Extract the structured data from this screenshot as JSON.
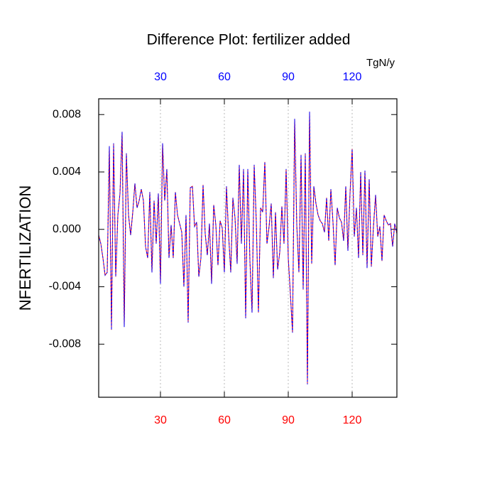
{
  "chart_data": {
    "type": "line",
    "title": "Difference Plot: fertilizer added",
    "ylabel": "NFERTILIZATION",
    "x2label": "TgN/y",
    "x": [
      1,
      2,
      3,
      4,
      5,
      6,
      7,
      8,
      9,
      10,
      11,
      12,
      13,
      14,
      15,
      16,
      17,
      18,
      19,
      20,
      21,
      22,
      23,
      24,
      25,
      26,
      27,
      28,
      29,
      30,
      31,
      32,
      33,
      34,
      35,
      36,
      37,
      38,
      39,
      40,
      41,
      42,
      43,
      44,
      45,
      46,
      47,
      48,
      49,
      50,
      51,
      52,
      53,
      54,
      55,
      56,
      57,
      58,
      59,
      60,
      61,
      62,
      63,
      64,
      65,
      66,
      67,
      68,
      69,
      70,
      71,
      72,
      73,
      74,
      75,
      76,
      77,
      78,
      79,
      80,
      81,
      82,
      83,
      84,
      85,
      86,
      87,
      88,
      89,
      90,
      91,
      92,
      93,
      94,
      95,
      96,
      97,
      98,
      99,
      100,
      101,
      102,
      103,
      104,
      105,
      106,
      107,
      108,
      109,
      110,
      111,
      112,
      113,
      114,
      115,
      116,
      117,
      118,
      119,
      120,
      121,
      122,
      123,
      124,
      125,
      126,
      127,
      128,
      129,
      130,
      131,
      132,
      133,
      134,
      135,
      136,
      137,
      138,
      139,
      140,
      141
    ],
    "series": [
      {
        "color": "#ff0000",
        "overlay_color": "#0000ff",
        "values": [
          -0.0004,
          -0.001,
          -0.002,
          -0.0032,
          -0.003,
          0.0058,
          -0.007,
          0.006,
          -0.0033,
          0.001,
          0.0025,
          0.0068,
          -0.0068,
          0.0053,
          0.001,
          -0.0004,
          0.0012,
          0.0032,
          0.0015,
          0.002,
          0.0028,
          0.002,
          -0.0012,
          -0.002,
          0.0026,
          -0.003,
          0.002,
          -0.001,
          0.0025,
          -0.0038,
          0.006,
          0.002,
          0.0042,
          -0.002,
          0.0003,
          -0.002,
          0.0026,
          0.001,
          0.0004,
          -0.0002,
          -0.004,
          0.001,
          -0.0065,
          0.0029,
          0.003,
          0.0002,
          0.0005,
          -0.0033,
          -0.002,
          0.0031,
          -0.0003,
          -0.0018,
          0.0004,
          -0.0038,
          0.0017,
          0.0003,
          -0.0025,
          0.0006,
          0.0001,
          -0.003,
          0.003,
          -0.0004,
          -0.003,
          0.0022,
          0.0008,
          -0.0024,
          0.0045,
          -0.001,
          0.0042,
          -0.0062,
          0.0042,
          -0.0022,
          -0.0058,
          0.0045,
          0.0005,
          -0.0058,
          0.0015,
          0.0012,
          0.0047,
          -0.001,
          0.0002,
          0.0018,
          -0.0034,
          0.0012,
          -0.0028,
          -0.0016,
          0.0016,
          -0.001,
          0.0042,
          -0.002,
          -0.0045,
          -0.0072,
          0.0077,
          0.0003,
          -0.003,
          0.0052,
          -0.0042,
          0.0053,
          -0.0108,
          0.0082,
          -0.0024,
          0.003,
          0.0018,
          0.001,
          0.0006,
          0.0004,
          -0.0002,
          0.0022,
          -0.0008,
          0.0028,
          0.0005,
          -0.0025,
          0.0015,
          0.0008,
          0.0005,
          -0.0008,
          0.003,
          -0.0015,
          0.0025,
          0.0056,
          -0.0005,
          0.0015,
          -0.002,
          0.004,
          -0.0018,
          0.0041,
          -0.0027,
          0.0035,
          -0.0026,
          0.0002,
          0.0024,
          -0.0005,
          0.0002,
          -0.0022,
          0.001,
          0.0006,
          0.0003,
          0.0004,
          -0.0012,
          0.0004,
          -0.0003
        ]
      }
    ],
    "xlim": [
      1,
      141
    ],
    "ylim": [
      -0.0117,
      0.0091
    ],
    "xticks": [
      30,
      60,
      90,
      120
    ],
    "x2ticks": [
      30,
      60,
      90,
      120
    ],
    "xtick_color": "#ff0000",
    "x2tick_color": "#0000ff",
    "yticks": [
      0.008,
      0.004,
      {
        "value": 0,
        "label": "0.000"
      },
      -0.004,
      -0.008
    ],
    "grid": true
  }
}
